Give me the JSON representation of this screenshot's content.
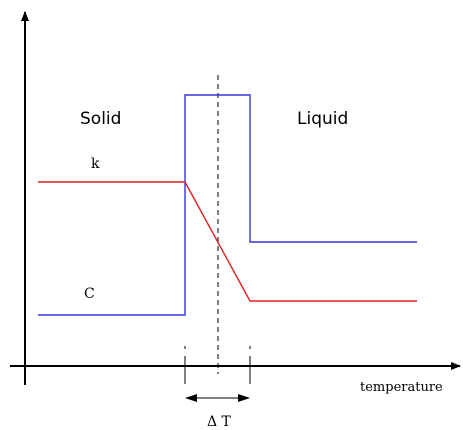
{
  "regions": [
    "Solid",
    "Liquid"
  ],
  "curves": [
    "k",
    "C"
  ],
  "x_axis_label": "temperature",
  "interval_label": "Δ T"
}
